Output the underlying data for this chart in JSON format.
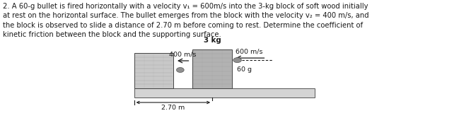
{
  "text_paragraph": "2. A 60-g bullet is fired horizontally with a velocity v₁ = 600m/s into the 3-kg block of soft wood initially\nat rest on the horizontal surface. The bullet emerges from the block with the velocity v₂ = 400 m/s, and\nthe block is observed to slide a distance of 2.70 m before coming to rest. Determine the coefficient of\nkinetic friction between the block and the supporting surface.",
  "block_label": "3 kg",
  "arrow_left_label": "400 m/s",
  "arrow_right_label": "600 m/s",
  "bullet_label": "60 g",
  "distance_label": "2.70 m",
  "bg_color": "#ffffff",
  "font_color": "#1a1a1a",
  "font_size_text": 7.2,
  "font_size_diagram": 6.8,
  "left_block_color": "#c8c8c8",
  "right_block_color": "#b2b2b2",
  "surface_top_color": "#d4d4d4",
  "surface_edge_color": "#555555",
  "grain_color": "#999999",
  "bullet_color": "#909090"
}
